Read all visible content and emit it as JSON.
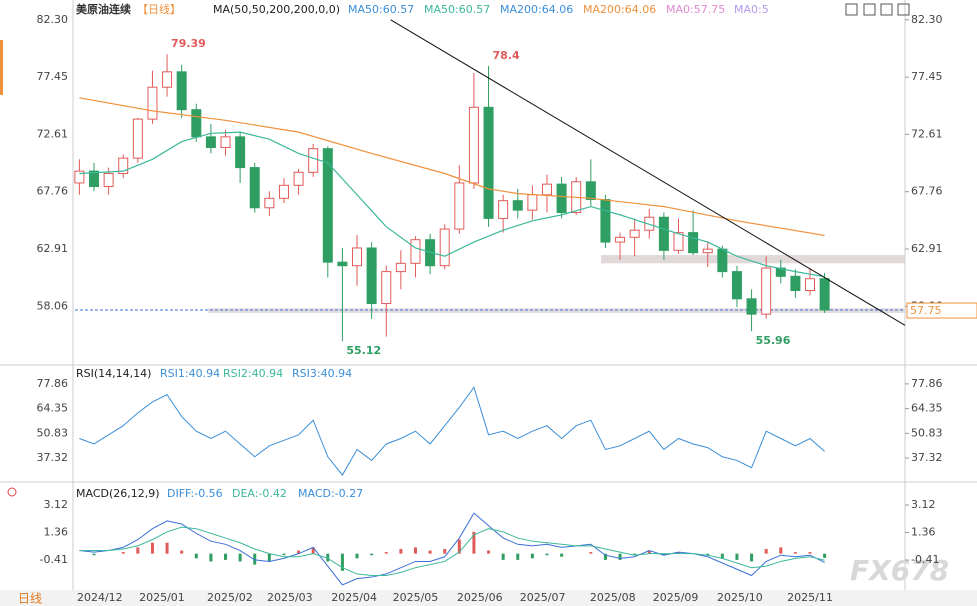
{
  "ui": {
    "period_button": "日线",
    "watermark": "FX678"
  },
  "chart_data": [
    {
      "type": "candlestick",
      "title": "美原油连续",
      "subtitle": "【日线】",
      "indicator": "MA(50,50,200,200,0,0)",
      "legend": [
        {
          "label": "MA50:60.57",
          "color": "#3b8ed8"
        },
        {
          "label": "MA50:60.57",
          "color": "#3cb89a"
        },
        {
          "label": "MA200:64.06",
          "color": "#3b8ed8"
        },
        {
          "label": "MA200:64.06",
          "color": "#f0913c"
        },
        {
          "label": "MA0:57.75",
          "color": "#e08ad0"
        },
        {
          "label": "MA0:5",
          "color": "#b39ae6"
        }
      ],
      "up_color": "#e05a5a",
      "down_color": "#2f9e62",
      "open": [
        68.5,
        69.5,
        68.2,
        69.3,
        70.6,
        73.9,
        76.6,
        77.9,
        74.7,
        72.4,
        71.5,
        72.4,
        69.8,
        66.4,
        67.2,
        68.3,
        69.4,
        71.4,
        61.8,
        61.5,
        63.0,
        58.3,
        61.0,
        61.7,
        63.7,
        61.5,
        64.6,
        68.5,
        74.9,
        65.5,
        67.0,
        66.2,
        67.5,
        68.4,
        66.0,
        68.6,
        67.1,
        63.5,
        63.9,
        64.5,
        65.6,
        62.8,
        64.3,
        62.6,
        62.9,
        61.0,
        58.7,
        57.4,
        61.3,
        60.6,
        59.4,
        60.4
      ],
      "high": [
        70.5,
        70.2,
        69.8,
        70.9,
        74.0,
        78.0,
        79.39,
        78.5,
        75.2,
        73.5,
        73.0,
        72.8,
        70.2,
        67.8,
        68.9,
        69.7,
        71.8,
        71.6,
        63.0,
        64.1,
        63.5,
        61.5,
        62.8,
        64.0,
        64.2,
        65.0,
        70.0,
        77.8,
        78.4,
        67.5,
        68.0,
        68.3,
        69.2,
        69.0,
        69.0,
        70.5,
        67.5,
        64.3,
        65.5,
        66.3,
        66.0,
        65.5,
        66.2,
        63.5,
        63.2,
        61.5,
        59.5,
        62.3,
        62.0,
        61.2,
        61.3,
        60.9
      ],
      "low": [
        67.5,
        67.8,
        67.5,
        68.9,
        70.2,
        73.5,
        75.8,
        74.0,
        72.0,
        71.0,
        70.8,
        68.5,
        66.0,
        65.7,
        66.8,
        67.5,
        69.0,
        60.5,
        55.12,
        59.8,
        57.0,
        55.5,
        59.5,
        60.5,
        60.8,
        61.2,
        64.2,
        68.0,
        64.8,
        64.3,
        65.5,
        65.4,
        66.0,
        65.5,
        65.8,
        66.5,
        63.0,
        62.0,
        62.3,
        63.8,
        62.0,
        62.5,
        62.4,
        61.4,
        60.5,
        58.0,
        55.96,
        57.0,
        60.0,
        58.8,
        59.0,
        57.5
      ],
      "close": [
        69.5,
        68.2,
        69.3,
        70.6,
        73.9,
        76.6,
        77.9,
        74.7,
        72.4,
        71.5,
        72.4,
        69.8,
        66.4,
        67.2,
        68.3,
        69.4,
        71.4,
        61.8,
        61.5,
        63.0,
        58.3,
        61.0,
        61.7,
        63.7,
        61.5,
        64.6,
        68.5,
        74.9,
        65.5,
        67.0,
        66.2,
        67.5,
        68.4,
        66.0,
        68.6,
        67.1,
        63.5,
        63.9,
        64.5,
        65.6,
        62.8,
        64.3,
        62.6,
        62.9,
        61.0,
        58.7,
        57.4,
        61.3,
        60.6,
        59.4,
        60.4,
        57.75
      ],
      "lines": [
        {
          "color": "#3cb89a",
          "x": [
            0,
            3,
            5,
            7,
            9,
            11,
            13,
            15,
            17,
            19,
            21,
            23,
            25,
            27,
            29,
            31,
            33,
            35,
            37,
            39,
            41,
            43,
            45,
            47,
            49,
            51
          ],
          "values": [
            69.3,
            69.5,
            70.5,
            72.0,
            72.7,
            72.8,
            72.2,
            71.0,
            70.2,
            67.5,
            64.8,
            63.0,
            62.3,
            63.5,
            64.5,
            65.3,
            65.8,
            66.5,
            65.8,
            65.0,
            64.2,
            63.5,
            62.3,
            61.5,
            61.0,
            60.57
          ]
        },
        {
          "color": "#f0913c",
          "x": [
            0,
            5,
            10,
            15,
            20,
            25,
            28,
            30,
            35,
            40,
            45,
            51
          ],
          "values": [
            75.7,
            74.6,
            73.8,
            72.8,
            71.0,
            69.3,
            68.0,
            67.6,
            67.2,
            66.5,
            65.3,
            64.06
          ]
        }
      ],
      "trendline": {
        "color": "#111111",
        "x": [
          21.3,
          56.5
        ],
        "values": [
          82.3,
          56.46
        ]
      },
      "bands": [
        {
          "color": "#d9cfcf",
          "x": [
            35.7,
            56.5
          ],
          "range": [
            61.7,
            62.4
          ]
        },
        {
          "color": "#ddd5d5",
          "x": [
            8.8,
            56.5
          ],
          "range": [
            57.5,
            57.9
          ]
        }
      ],
      "annotations": [
        {
          "x": 6,
          "value": 79.39,
          "color": "#e05a5a"
        },
        {
          "x": 28,
          "value": 78.4,
          "color": "#e05a5a"
        },
        {
          "x": 18,
          "value": 55.12,
          "color": "#2f9e62"
        },
        {
          "x": 46,
          "value": 55.96,
          "color": "#2f9e62"
        }
      ],
      "last_price": {
        "value": 57.75,
        "color": "#f0913c",
        "line_color": "#3b6fd8"
      },
      "xlim": [
        -0.3,
        56.5
      ],
      "xticks": [
        {
          "value": 1.4,
          "label": "2024/12"
        },
        {
          "value": 5.65,
          "label": "2025/01"
        },
        {
          "value": 10.3,
          "label": "2025/02"
        },
        {
          "value": 14.4,
          "label": "2025/03"
        },
        {
          "value": 18.8,
          "label": "2025/04"
        },
        {
          "value": 23.0,
          "label": "2025/05"
        },
        {
          "value": 27.4,
          "label": "2025/06"
        },
        {
          "value": 31.7,
          "label": "2025/07"
        },
        {
          "value": 36.5,
          "label": "2025/08"
        },
        {
          "value": 40.8,
          "label": "2025/09"
        },
        {
          "value": 45.2,
          "label": "2025/10"
        },
        {
          "value": 50.0,
          "label": "2025/11"
        }
      ],
      "ylim": [
        53.1,
        83.3
      ],
      "yticks": [
        {
          "value": 82.3,
          "label": "82.30"
        },
        77.45,
        72.61,
        67.76,
        62.91,
        58.06
      ]
    },
    {
      "type": "line",
      "indicator": "RSI(14,14,14)",
      "legend": [
        {
          "label": "RSI1:40.94",
          "color": "#3b8ed8"
        },
        {
          "label": "RSI2:40.94",
          "color": "#3cb89a"
        },
        {
          "label": "RSI3:40.94",
          "color": "#3b8ed8"
        }
      ],
      "series": [
        {
          "color": "#3b8ed8",
          "values": [
            48,
            45,
            50,
            55,
            62,
            68,
            72,
            60,
            52,
            48,
            52,
            45,
            38,
            44,
            47,
            50,
            58,
            38,
            28,
            42,
            36,
            45,
            48,
            52,
            45,
            55,
            65,
            76,
            50,
            52,
            48,
            52,
            55,
            48,
            55,
            58,
            42,
            44,
            48,
            52,
            42,
            48,
            45,
            43,
            38,
            36,
            32,
            52,
            48,
            44,
            48,
            40.94
          ]
        }
      ],
      "ylim": [
        24.2,
        88.2
      ],
      "yticks": [
        77.86,
        64.35,
        50.83,
        37.32
      ]
    },
    {
      "type": "macd",
      "indicator": "MACD(26,12,9)",
      "legend": [
        {
          "label": "DIFF:-0.56",
          "color": "#3b8ed8"
        },
        {
          "label": "DEA:-0.42",
          "color": "#3cb89a"
        },
        {
          "label": "MACD:-0.27",
          "color": "#3b8ed8"
        }
      ],
      "diff": {
        "color": "#3b6fd8",
        "values": [
          0.2,
          0.1,
          0.2,
          0.4,
          0.9,
          1.6,
          2.1,
          1.9,
          1.3,
          0.8,
          0.6,
          0.2,
          -0.4,
          -0.5,
          -0.3,
          0,
          0.4,
          -0.8,
          -2.0,
          -1.6,
          -1.5,
          -1.3,
          -0.9,
          -0.5,
          -0.5,
          -0.2,
          1.0,
          2.6,
          1.8,
          1.0,
          0.6,
          0.5,
          0.6,
          0.4,
          0.5,
          0.6,
          -0.1,
          -0.3,
          -0.2,
          0.2,
          -0.1,
          0.1,
          0,
          -0.2,
          -0.6,
          -1.0,
          -1.4,
          -0.5,
          -0.1,
          -0.2,
          -0.1,
          -0.56
        ]
      },
      "dea": {
        "color": "#3cb89a",
        "values": [
          0.2,
          0.2,
          0.2,
          0.3,
          0.5,
          0.9,
          1.4,
          1.7,
          1.6,
          1.3,
          1.0,
          0.7,
          0.3,
          0,
          -0.2,
          -0.2,
          0,
          -0.3,
          -0.9,
          -1.3,
          -1.4,
          -1.4,
          -1.2,
          -0.9,
          -0.7,
          -0.5,
          0.1,
          1.2,
          1.6,
          1.4,
          1.0,
          0.8,
          0.7,
          0.6,
          0.5,
          0.5,
          0.3,
          0.1,
          -0.1,
          0,
          0,
          0,
          0,
          -0.1,
          -0.3,
          -0.6,
          -0.9,
          -0.8,
          -0.5,
          -0.3,
          -0.2,
          -0.42
        ]
      },
      "histogram": {
        "up_color": "#e05a5a",
        "down_color": "#2f9e62",
        "values": [
          0,
          -0.1,
          0,
          0.1,
          0.4,
          0.7,
          0.7,
          0.2,
          -0.3,
          -0.5,
          -0.4,
          -0.5,
          -0.7,
          -0.5,
          -0.1,
          0.2,
          0.4,
          -0.5,
          -1.1,
          -0.3,
          -0.1,
          0.1,
          0.3,
          0.4,
          0.2,
          0.3,
          0.9,
          1.4,
          0.2,
          -0.4,
          -0.4,
          -0.3,
          -0.1,
          -0.2,
          0,
          0.1,
          -0.4,
          -0.4,
          -0.1,
          0.2,
          -0.1,
          0.1,
          0,
          -0.1,
          -0.3,
          -0.4,
          -0.5,
          0.3,
          0.4,
          0.1,
          0.1,
          -0.27
        ]
      },
      "ylim": [
        -2.33,
        4.53
      ],
      "yticks": [
        3.12,
        1.36,
        -0.41
      ]
    }
  ]
}
